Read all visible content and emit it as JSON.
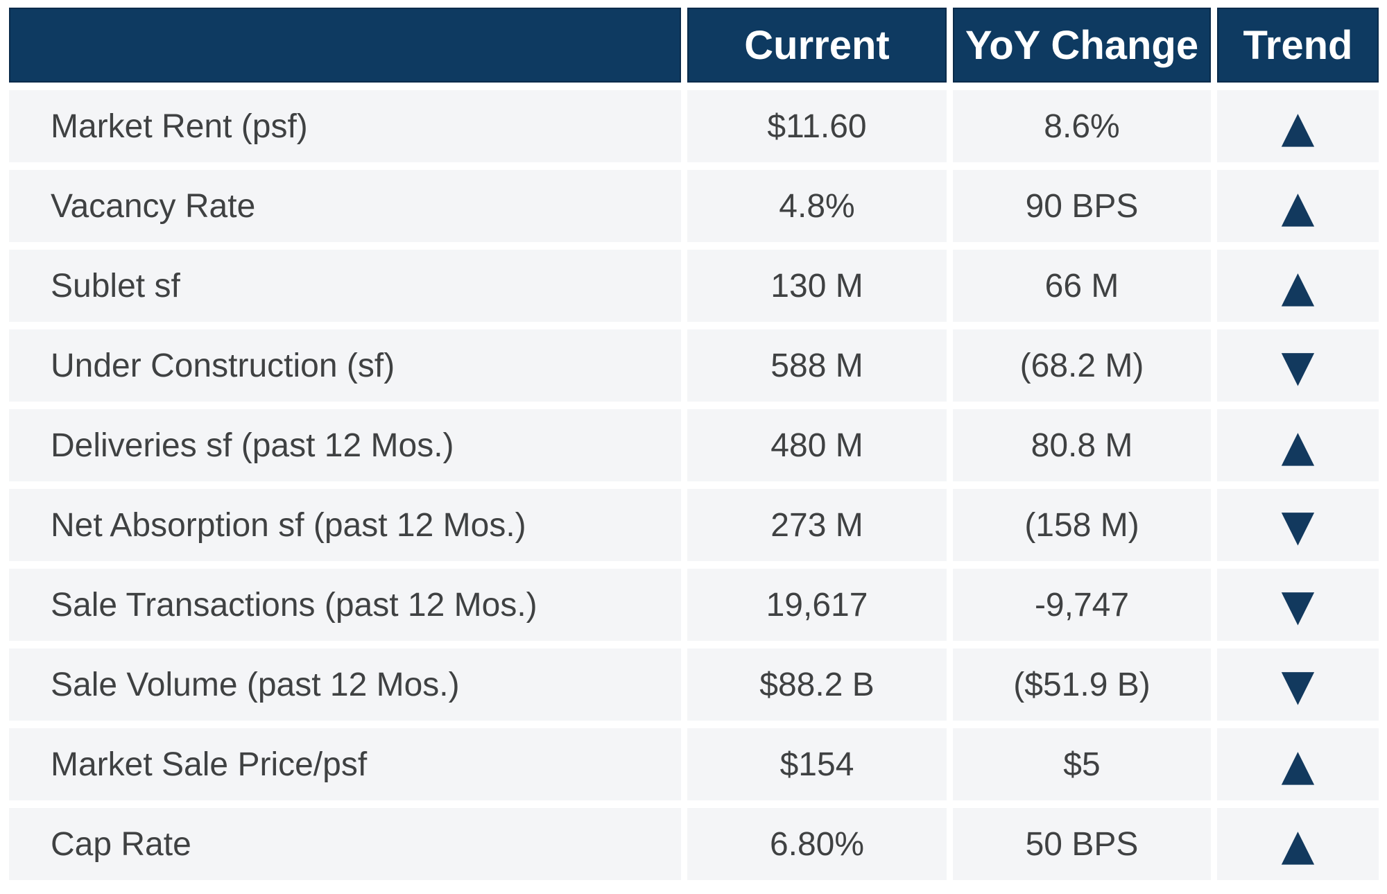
{
  "colors": {
    "header_bg": "#0E3A61",
    "header_text": "#FFFFFF",
    "row_bg": "#F4F5F7",
    "text": "#3F4142",
    "trend": "#12395E",
    "page_bg": "#FFFFFF"
  },
  "icons": {
    "trend_up": "▲",
    "trend_down": "▼"
  },
  "chart_data": {
    "type": "table",
    "title": "",
    "columns": [
      "",
      "Current",
      "YoY Change",
      "Trend"
    ],
    "rows": [
      {
        "metric": "Market Rent (psf)",
        "current": "$11.60",
        "yoy_change": "8.6%",
        "trend": "up",
        "trend_glyph": "▲"
      },
      {
        "metric": "Vacancy Rate",
        "current": "4.8%",
        "yoy_change": "90 BPS",
        "trend": "up",
        "trend_glyph": "▲"
      },
      {
        "metric": "Sublet sf",
        "current": "130 M",
        "yoy_change": "66 M",
        "trend": "up",
        "trend_glyph": "▲"
      },
      {
        "metric": "Under Construction (sf)",
        "current": "588 M",
        "yoy_change": "(68.2 M)",
        "trend": "down",
        "trend_glyph": "▼"
      },
      {
        "metric": "Deliveries sf (past 12 Mos.)",
        "current": "480 M",
        "yoy_change": "80.8 M",
        "trend": "up",
        "trend_glyph": "▲"
      },
      {
        "metric": "Net Absorption sf (past 12 Mos.)",
        "current": "273 M",
        "yoy_change": "(158 M)",
        "trend": "down",
        "trend_glyph": "▼"
      },
      {
        "metric": "Sale Transactions (past 12 Mos.)",
        "current": "19,617",
        "yoy_change": "-9,747",
        "trend": "down",
        "trend_glyph": "▼"
      },
      {
        "metric": "Sale Volume (past 12 Mos.)",
        "current": "$88.2 B",
        "yoy_change": "($51.9 B)",
        "trend": "down",
        "trend_glyph": "▼"
      },
      {
        "metric": "Market Sale Price/psf",
        "current": "$154",
        "yoy_change": "$5",
        "trend": "up",
        "trend_glyph": "▲"
      },
      {
        "metric": "Cap Rate",
        "current": "6.80%",
        "yoy_change": "50 BPS",
        "trend": "up",
        "trend_glyph": "▲"
      }
    ]
  }
}
